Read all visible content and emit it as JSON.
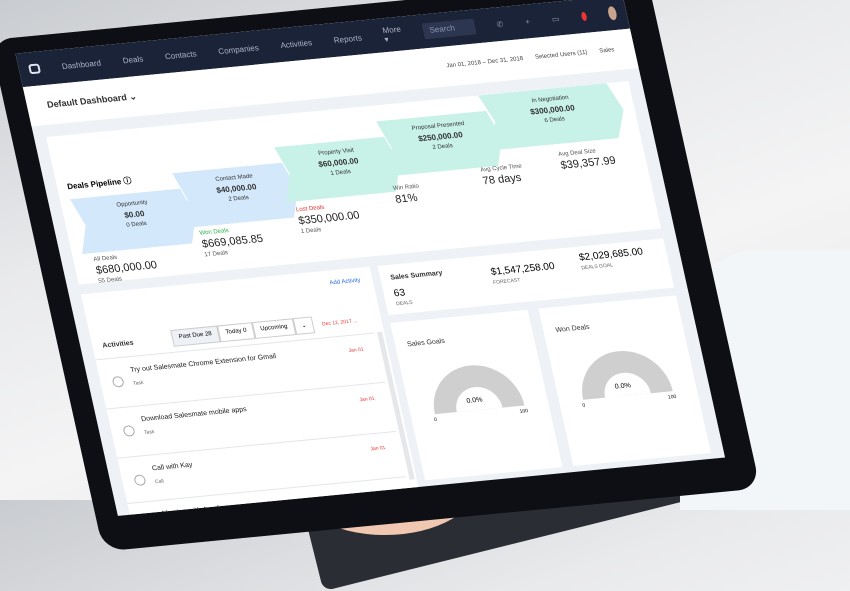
{
  "nav": {
    "items": [
      "Dashboard",
      "Deals",
      "Contacts",
      "Companies",
      "Activities",
      "Reports",
      "More ▾"
    ],
    "search_placeholder": "Search"
  },
  "header": {
    "title": "Default Dashboard",
    "date_range": "Jan 01, 2018 – Dec 31, 2018",
    "users": "Selected Users (11)",
    "select": "Sales"
  },
  "pipeline": {
    "title": "Deals Pipeline",
    "stages": [
      {
        "name": "Opportunity",
        "amount": "$0.00",
        "deals": "0 Deals"
      },
      {
        "name": "Contact Made",
        "amount": "$40,000.00",
        "deals": "2 Deals"
      },
      {
        "name": "Property Visit",
        "amount": "$60,000.00",
        "deals": "1 Deals"
      },
      {
        "name": "Proposal Presented",
        "amount": "$250,000.00",
        "deals": "2 Deals"
      },
      {
        "name": "In Negotiation",
        "amount": "$300,000.00",
        "deals": "6 Deals"
      }
    ],
    "stats": {
      "all": {
        "label": "All Deals",
        "value": "$680,000.00",
        "sub": "55 Deals"
      },
      "won": {
        "label": "Won Deals",
        "value": "$669,085.85",
        "sub": "17 Deals"
      },
      "lost": {
        "label": "Lost Deals",
        "value": "$350,000.00",
        "sub": "1 Deals"
      },
      "win_ratio": {
        "label": "Win Ratio",
        "value": "81%"
      },
      "cycle": {
        "label": "Avg Cycle Time",
        "value": "78 days"
      },
      "size": {
        "label": "Avg Deal Size",
        "value": "$39,357.99"
      }
    }
  },
  "activities": {
    "title": "Activities",
    "add": "Add Activity",
    "tabs": [
      "Past Due 28",
      "Today 0",
      "Upcoming"
    ],
    "date_header": "Dec 12, 2017 ...",
    "items": [
      {
        "title": "Try out Salesmate Chrome Extension for Gmail",
        "type": "Task",
        "date": "Jan 01"
      },
      {
        "title": "Download Salesmate mobile apps",
        "type": "Task",
        "date": "Jan 01"
      },
      {
        "title": "Call with Kay",
        "type": "Call",
        "date": "Jan 01"
      },
      {
        "title": "Meeting with Amelia",
        "type": "",
        "date": ""
      }
    ]
  },
  "summary": {
    "title": "Sales Summary",
    "deals": "63",
    "deals_label": "DEALS",
    "forecast": "$1,547,258.00",
    "forecast_label": "FORECAST",
    "goals": "$2,029,685.00",
    "goals_label": "DEALS GOAL"
  },
  "gauges": [
    {
      "title": "Sales Goals",
      "value": "0.0%",
      "min": "0",
      "max": "100",
      "percent": 0
    },
    {
      "title": "Won Deals",
      "value": "0.0%",
      "min": "0",
      "max": "100",
      "percent": 0
    }
  ],
  "colors": {
    "nav": "#1b2338",
    "stage_blue": "#d3e9fb",
    "stage_teal": "#c8f2e8",
    "won": "#2bb24c",
    "lost": "#e33333",
    "link": "#2b6de0"
  }
}
